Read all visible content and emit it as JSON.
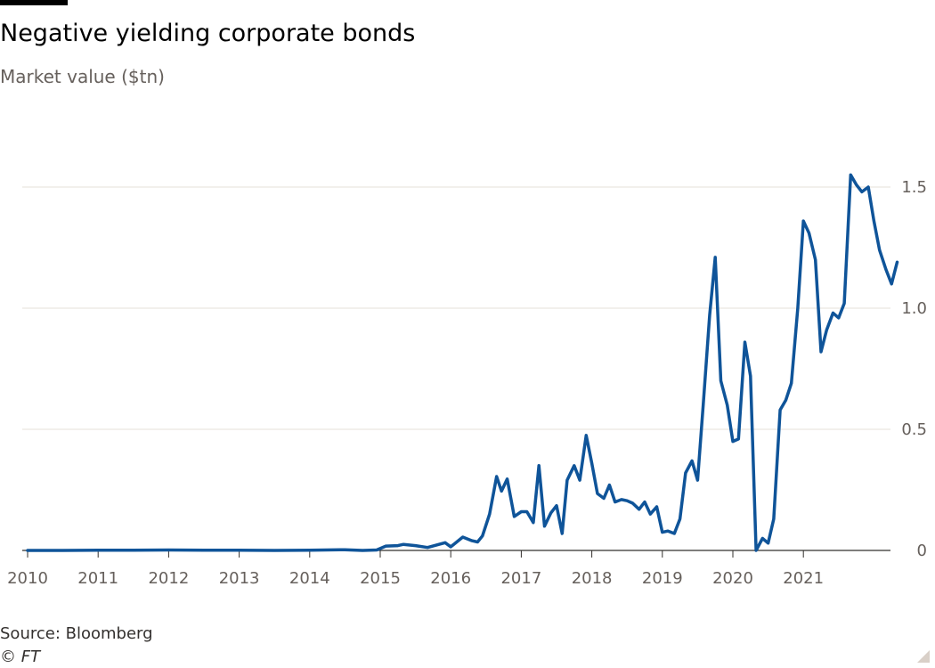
{
  "title": "Negative yielding corporate bonds",
  "subtitle": "Market value ($tn)",
  "source": "Source: Bloomberg",
  "copyright": "© FT",
  "colors": {
    "line": "#0f5499",
    "grid": "#e6e0da",
    "axis": "#33302e",
    "text": "#66605c"
  },
  "chart_data": {
    "type": "line",
    "title": "Negative yielding corporate bonds",
    "ylabel": "Market value ($tn)",
    "xlabel": "",
    "xlim": [
      2010,
      2022.15
    ],
    "ylim": [
      0,
      1.7
    ],
    "y_axis_side": "right",
    "grid": "horizontal",
    "xticks": [
      {
        "value": 2010,
        "label": "2010"
      },
      {
        "value": 2011,
        "label": "2011"
      },
      {
        "value": 2012,
        "label": "2012"
      },
      {
        "value": 2013,
        "label": "2013"
      },
      {
        "value": 2014,
        "label": "2014"
      },
      {
        "value": 2015,
        "label": "2015"
      },
      {
        "value": 2016,
        "label": "2016"
      },
      {
        "value": 2017,
        "label": "2017"
      },
      {
        "value": 2018,
        "label": "2018"
      },
      {
        "value": 2019,
        "label": "2019"
      },
      {
        "value": 2020,
        "label": "2020"
      },
      {
        "value": 2021,
        "label": "2021"
      }
    ],
    "yticks": [
      {
        "value": 0,
        "label": "0"
      },
      {
        "value": 0.5,
        "label": "0.5"
      },
      {
        "value": 1.0,
        "label": "1.0"
      },
      {
        "value": 1.5,
        "label": "1.5"
      }
    ],
    "series": [
      {
        "points": [
          [
            2010.0,
            0.0
          ],
          [
            2010.5,
            0.0
          ],
          [
            2011.0,
            0.001
          ],
          [
            2011.5,
            0.001
          ],
          [
            2012.0,
            0.002
          ],
          [
            2012.5,
            0.001
          ],
          [
            2013.0,
            0.001
          ],
          [
            2013.5,
            0.0
          ],
          [
            2014.0,
            0.001
          ],
          [
            2014.5,
            0.003
          ],
          [
            2014.75,
            0.0
          ],
          [
            2014.95,
            0.002
          ],
          [
            2015.08,
            0.018
          ],
          [
            2015.25,
            0.02
          ],
          [
            2015.33,
            0.025
          ],
          [
            2015.5,
            0.02
          ],
          [
            2015.67,
            0.012
          ],
          [
            2015.92,
            0.032
          ],
          [
            2016.0,
            0.015
          ],
          [
            2016.17,
            0.055
          ],
          [
            2016.3,
            0.04
          ],
          [
            2016.38,
            0.035
          ],
          [
            2016.45,
            0.06
          ],
          [
            2016.55,
            0.15
          ],
          [
            2016.65,
            0.305
          ],
          [
            2016.72,
            0.245
          ],
          [
            2016.8,
            0.295
          ],
          [
            2016.9,
            0.14
          ],
          [
            2017.0,
            0.16
          ],
          [
            2017.08,
            0.16
          ],
          [
            2017.17,
            0.115
          ],
          [
            2017.25,
            0.35
          ],
          [
            2017.33,
            0.1
          ],
          [
            2017.42,
            0.155
          ],
          [
            2017.5,
            0.185
          ],
          [
            2017.58,
            0.07
          ],
          [
            2017.65,
            0.29
          ],
          [
            2017.75,
            0.35
          ],
          [
            2017.83,
            0.29
          ],
          [
            2017.92,
            0.475
          ],
          [
            2018.0,
            0.36
          ],
          [
            2018.08,
            0.235
          ],
          [
            2018.17,
            0.215
          ],
          [
            2018.25,
            0.27
          ],
          [
            2018.33,
            0.2
          ],
          [
            2018.42,
            0.21
          ],
          [
            2018.5,
            0.205
          ],
          [
            2018.58,
            0.195
          ],
          [
            2018.67,
            0.17
          ],
          [
            2018.75,
            0.2
          ],
          [
            2018.83,
            0.15
          ],
          [
            2018.92,
            0.18
          ],
          [
            2019.0,
            0.075
          ],
          [
            2019.08,
            0.08
          ],
          [
            2019.17,
            0.07
          ],
          [
            2019.25,
            0.13
          ],
          [
            2019.33,
            0.32
          ],
          [
            2019.42,
            0.37
          ],
          [
            2019.5,
            0.29
          ],
          [
            2019.58,
            0.6
          ],
          [
            2019.67,
            0.97
          ],
          [
            2019.75,
            1.21
          ],
          [
            2019.83,
            0.7
          ],
          [
            2019.92,
            0.6
          ],
          [
            2020.0,
            0.45
          ],
          [
            2020.08,
            0.46
          ],
          [
            2020.17,
            0.86
          ],
          [
            2020.25,
            0.72
          ],
          [
            2020.33,
            0.0
          ],
          [
            2020.42,
            0.05
          ],
          [
            2020.5,
            0.03
          ],
          [
            2020.58,
            0.13
          ],
          [
            2020.67,
            0.58
          ],
          [
            2020.75,
            0.62
          ],
          [
            2020.83,
            0.69
          ],
          [
            2020.92,
            1.0
          ],
          [
            2021.0,
            1.36
          ],
          [
            2021.08,
            1.31
          ],
          [
            2021.17,
            1.2
          ],
          [
            2021.25,
            0.82
          ],
          [
            2021.33,
            0.91
          ],
          [
            2021.42,
            0.98
          ],
          [
            2021.5,
            0.96
          ],
          [
            2021.58,
            1.02
          ],
          [
            2021.67,
            1.55
          ],
          [
            2021.75,
            1.51
          ],
          [
            2021.83,
            1.48
          ],
          [
            2021.92,
            1.5
          ],
          [
            2022.0,
            1.36
          ],
          [
            2022.08,
            1.24
          ],
          [
            2022.17,
            1.16
          ],
          [
            2022.25,
            1.1
          ],
          [
            2022.33,
            1.19
          ]
        ]
      }
    ]
  }
}
